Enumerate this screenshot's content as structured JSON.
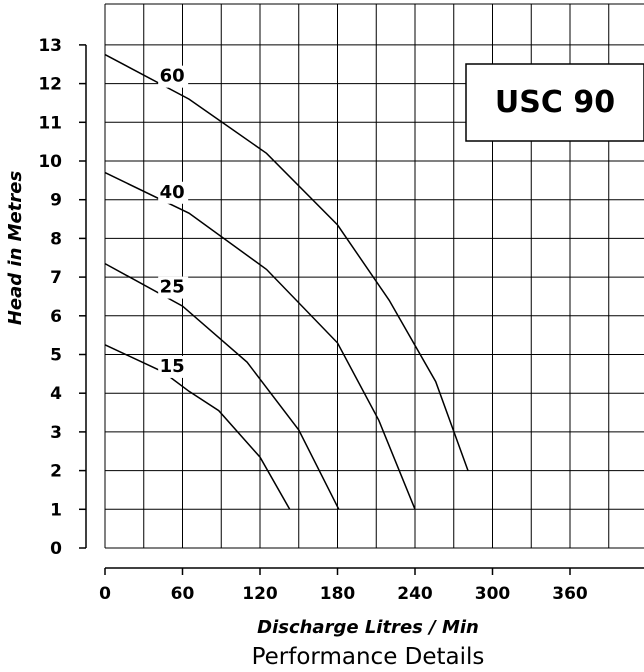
{
  "chart_data": {
    "type": "line",
    "title": "USC 90",
    "caption": "Performance Details",
    "xlabel": "Discharge Litres / Min",
    "ylabel": "Head in Metres",
    "xlim": [
      0,
      400
    ],
    "ylim": [
      0,
      13
    ],
    "x_ticks": [
      0,
      60,
      120,
      180,
      240,
      300,
      360
    ],
    "y_ticks": [
      0,
      1,
      2,
      3,
      4,
      5,
      6,
      7,
      8,
      9,
      10,
      11,
      12,
      13
    ],
    "grid": true,
    "series": [
      {
        "name": "15",
        "points": [
          [
            0,
            5.25
          ],
          [
            45,
            4.55
          ],
          [
            65,
            4.05
          ],
          [
            88,
            3.55
          ],
          [
            120,
            2.35
          ],
          [
            143,
            1.0
          ]
        ]
      },
      {
        "name": "25",
        "points": [
          [
            0,
            7.35
          ],
          [
            60,
            6.25
          ],
          [
            110,
            4.8
          ],
          [
            150,
            3.05
          ],
          [
            181,
            1.0
          ]
        ]
      },
      {
        "name": "40",
        "points": [
          [
            0,
            9.7
          ],
          [
            65,
            8.65
          ],
          [
            125,
            7.2
          ],
          [
            180,
            5.3
          ],
          [
            212,
            3.3
          ],
          [
            240,
            1.0
          ]
        ]
      },
      {
        "name": "60",
        "points": [
          [
            0,
            12.75
          ],
          [
            65,
            11.6
          ],
          [
            125,
            10.2
          ],
          [
            180,
            8.35
          ],
          [
            220,
            6.4
          ],
          [
            256,
            4.3
          ],
          [
            281,
            2.0
          ]
        ]
      }
    ]
  }
}
